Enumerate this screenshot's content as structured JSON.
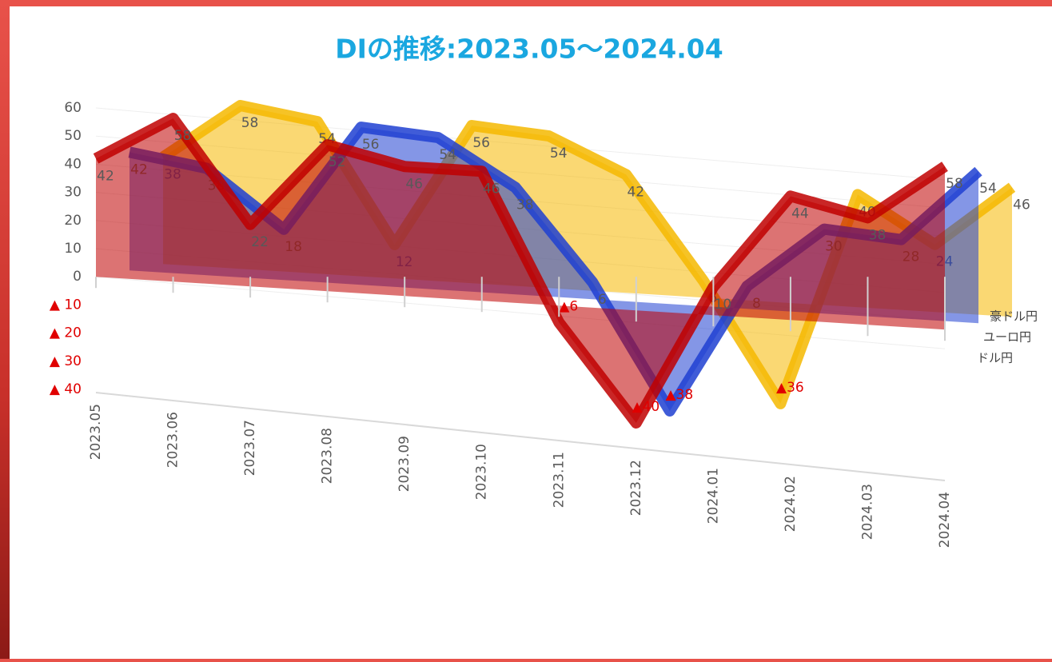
{
  "chart_data": {
    "type": "line3d",
    "title": "DIの推移:2023.05～2024.04",
    "categories": [
      "2023.05",
      "2023.06",
      "2023.07",
      "2023.08",
      "2023.09",
      "2023.10",
      "2023.11",
      "2023.12",
      "2024.01",
      "2024.02",
      "2024.03",
      "2024.04"
    ],
    "series": [
      {
        "name": "ドル円",
        "color": "#c00000",
        "values": [
          42,
          58,
          22,
          52,
          46,
          46,
          -6,
          -40,
          10,
          44,
          38,
          58
        ],
        "value_labels": [
          "42",
          "58",
          "22",
          "52",
          "46",
          "46",
          "▲6",
          "▲40",
          "10",
          "44",
          "38",
          "58"
        ]
      },
      {
        "name": "ユーロ円",
        "color": "#1f3fd1",
        "values": [
          42,
          38,
          18,
          56,
          54,
          38,
          6,
          -38,
          8,
          30,
          28,
          54
        ],
        "value_labels": [
          "42",
          "38",
          "18",
          "56",
          "54",
          "38",
          "6",
          "▲38",
          "8",
          "30",
          "28",
          "54"
        ]
      },
      {
        "name": "豪ドル円",
        "color": "#f5b800",
        "values": [
          38,
          58,
          54,
          12,
          56,
          54,
          42,
          6,
          -36,
          40,
          24,
          46
        ],
        "value_labels": [
          "38",
          "58",
          "54",
          "12",
          "56",
          "54",
          "42",
          "6",
          "▲36",
          "40",
          "24",
          "46"
        ]
      }
    ],
    "ylim": [
      -40,
      60
    ],
    "yticks": [
      {
        "value": -40,
        "label": "▲ 40"
      },
      {
        "value": -30,
        "label": "▲ 30"
      },
      {
        "value": -20,
        "label": "▲ 20"
      },
      {
        "value": -10,
        "label": "▲ 10"
      },
      0,
      10,
      20,
      30,
      40,
      50,
      60
    ],
    "grid": true
  }
}
